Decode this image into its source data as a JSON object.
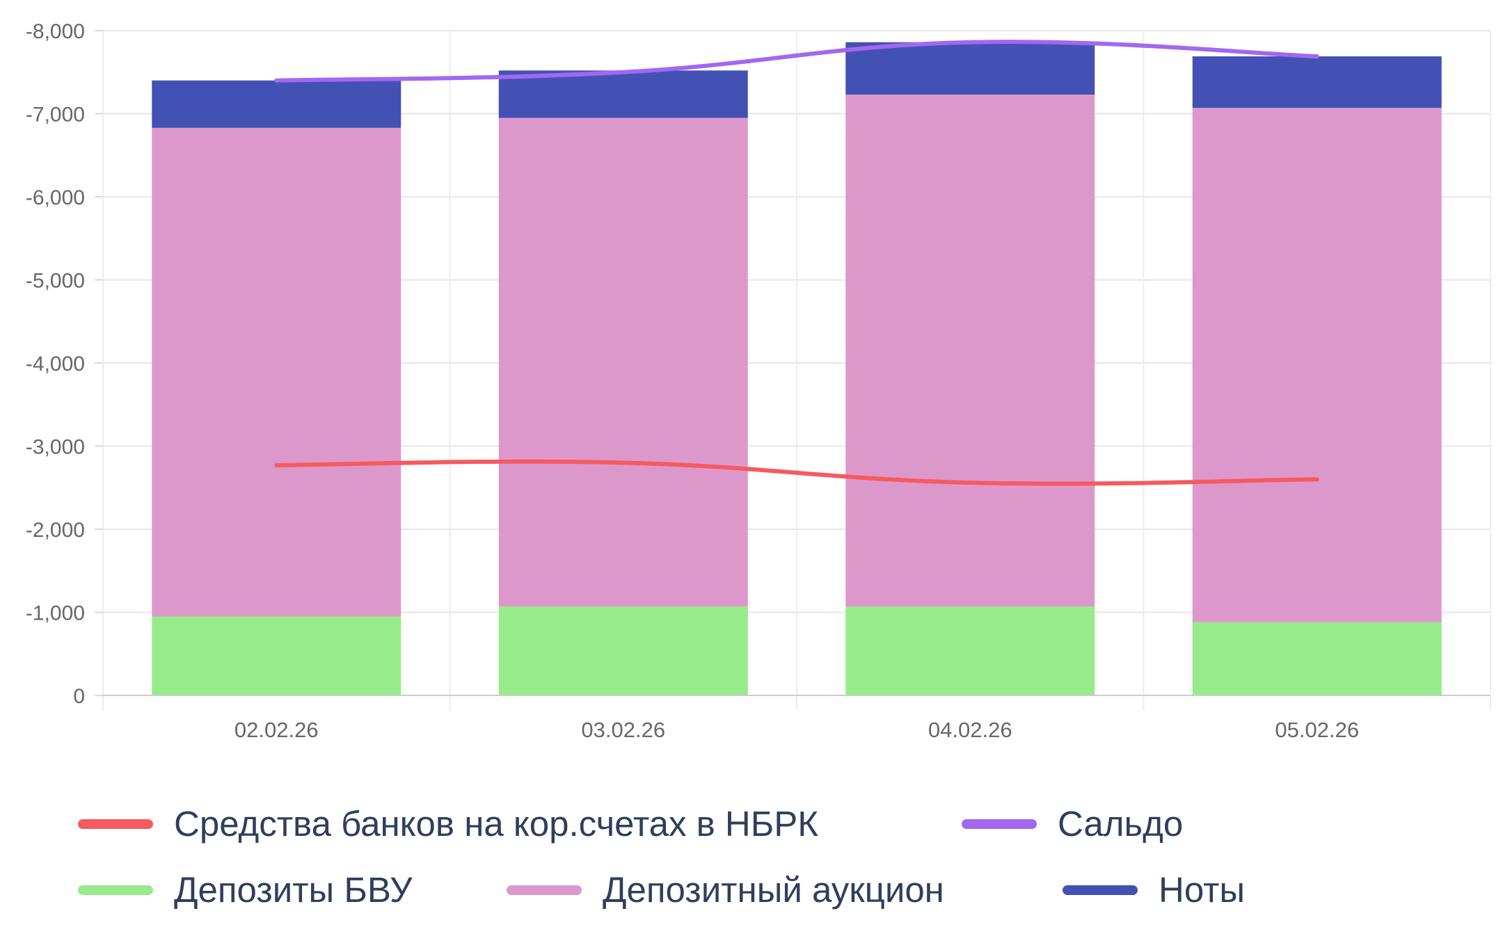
{
  "chart_data": {
    "type": "bar",
    "stacked": true,
    "categories": [
      "02.02.26",
      "03.02.26",
      "04.02.26",
      "05.02.26"
    ],
    "y_ticks": [
      "-8,000",
      "-7,000",
      "-6,000",
      "-5,000",
      "-4,000",
      "-3,000",
      "-2,000",
      "-1,000",
      "0"
    ],
    "ylim": [
      0,
      -8000
    ],
    "grid": true,
    "legend_position": "bottom",
    "bar_series": [
      {
        "name": "Депозиты БВУ",
        "color": "#98eb8a",
        "values": [
          -950,
          -1070,
          -1070,
          -880
        ]
      },
      {
        "name": "Депозитный аукцион",
        "color": "#dd98cb",
        "values": [
          -5880,
          -5880,
          -6160,
          -6190
        ]
      },
      {
        "name": "Ноты",
        "color": "#4351b5",
        "values": [
          -570,
          -570,
          -630,
          -620
        ]
      }
    ],
    "line_series": [
      {
        "name": "Средства банков на кор.счетах в НБРК",
        "color": "#f55a5e",
        "values": [
          -2770,
          -2800,
          -2560,
          -2600
        ]
      },
      {
        "name": "Сальдо",
        "color": "#a268f0",
        "values": [
          -7400,
          -7500,
          -7860,
          -7690
        ]
      }
    ]
  },
  "legend": {
    "items": [
      {
        "label": "Средства банков на кор.счетах в НБРК",
        "color": "#f55a5e"
      },
      {
        "label": "Сальдо",
        "color": "#a268f0"
      },
      {
        "label": "Депозиты БВУ",
        "color": "#98eb8a"
      },
      {
        "label": "Депозитный аукцион",
        "color": "#dd98cb"
      },
      {
        "label": "Ноты",
        "color": "#4351b5"
      }
    ]
  }
}
